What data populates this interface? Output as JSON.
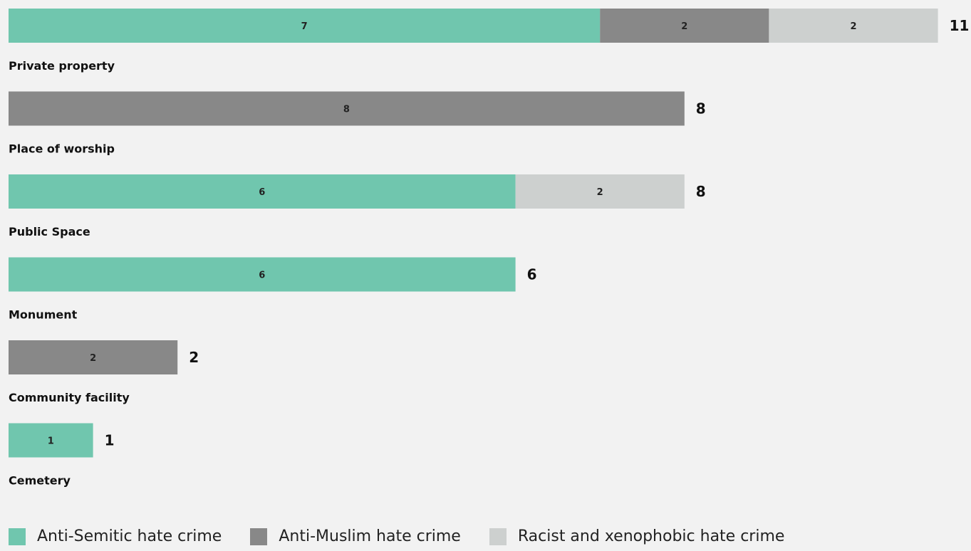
{
  "chart_data": {
    "type": "bar",
    "orientation": "horizontal",
    "stacked": true,
    "categories": [
      "Private property",
      "Place of worship",
      "Public Space",
      "Monument",
      "Community facility",
      "Cemetery"
    ],
    "series": [
      {
        "name": "Anti-Semitic hate crime",
        "color": "#70c6ae",
        "values": [
          7,
          0,
          6,
          6,
          0,
          1
        ]
      },
      {
        "name": "Anti-Muslim hate crime",
        "color": "#888888",
        "values": [
          2,
          8,
          0,
          0,
          2,
          0
        ]
      },
      {
        "name": "Racist and xenophobic hate crime",
        "color": "#cdd0cf",
        "values": [
          2,
          0,
          2,
          0,
          0,
          0
        ]
      }
    ],
    "totals": [
      11,
      8,
      8,
      6,
      2,
      1
    ],
    "grid": false,
    "legend_position": "bottom-left"
  }
}
